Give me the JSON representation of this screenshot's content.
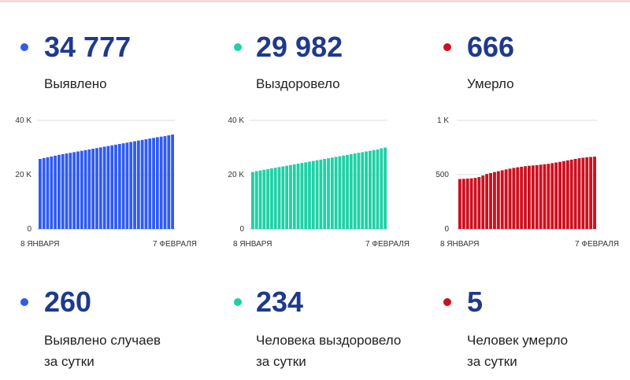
{
  "colors": {
    "blue": "#2f5bf0",
    "green": "#1fd0a6",
    "red": "#cc1020",
    "number": "#1f3a8a"
  },
  "top": {
    "infected": {
      "value": "34 777",
      "label": "Выявлено"
    },
    "recovered": {
      "value": "29 982",
      "label": "Выздоровело"
    },
    "died": {
      "value": "666",
      "label": "Умерло"
    }
  },
  "daily": {
    "infected": {
      "value": "260",
      "line1": "Выявлено случаев",
      "line2": "за сутки"
    },
    "recovered": {
      "value": "234",
      "line1": "Человека выздоровело",
      "line2": "за сутки"
    },
    "died": {
      "value": "5",
      "line1": "Человек умерло",
      "line2": "за сутки"
    }
  },
  "chart_data": [
    {
      "type": "bar",
      "color": "#2f5bf0",
      "xlabel_start": "8 ЯНВАРЯ",
      "xlabel_end": "7 ФЕВРАЛЯ",
      "yticks": [
        {
          "v": 0,
          "t": "0"
        },
        {
          "v": 20000,
          "t": "20 K"
        },
        {
          "v": 40000,
          "t": "40 K"
        }
      ],
      "ylim": [
        0,
        40000
      ],
      "grid": true,
      "values": [
        25800,
        26100,
        26400,
        26700,
        27000,
        27300,
        27550,
        27800,
        28050,
        28300,
        28550,
        28800,
        29050,
        29300,
        29550,
        29800,
        30050,
        30300,
        30550,
        30800,
        31050,
        31300,
        31550,
        31800,
        32050,
        32300,
        32550,
        32800,
        33050,
        33300,
        33550,
        33800,
        34000,
        34200,
        34500,
        34777
      ]
    },
    {
      "type": "bar",
      "color": "#1fd0a6",
      "xlabel_start": "8 ЯНВАРЯ",
      "xlabel_end": "7 ФЕВРАЛЯ",
      "yticks": [
        {
          "v": 0,
          "t": "0"
        },
        {
          "v": 20000,
          "t": "20 K"
        },
        {
          "v": 40000,
          "t": "40 K"
        }
      ],
      "ylim": [
        0,
        40000
      ],
      "grid": true,
      "values": [
        21000,
        21300,
        21550,
        21800,
        22050,
        22300,
        22550,
        22800,
        23050,
        23300,
        23550,
        23800,
        24050,
        24300,
        24550,
        24800,
        25050,
        25300,
        25550,
        25800,
        26050,
        26300,
        26550,
        26800,
        27050,
        27300,
        27550,
        27800,
        28050,
        28300,
        28550,
        28800,
        29050,
        29300,
        29700,
        29982
      ]
    },
    {
      "type": "bar",
      "color": "#cc1020",
      "xlabel_start": "8 ЯНВАРЯ",
      "xlabel_end": "7 ФЕВРАЛЯ",
      "yticks": [
        {
          "v": 0,
          "t": "0"
        },
        {
          "v": 500,
          "t": "500"
        },
        {
          "v": 1000,
          "t": "1 K"
        }
      ],
      "ylim": [
        0,
        1000
      ],
      "grid": true,
      "values": [
        460,
        462,
        464,
        466,
        470,
        478,
        492,
        506,
        515,
        524,
        532,
        540,
        548,
        555,
        562,
        568,
        573,
        578,
        582,
        585,
        588,
        592,
        596,
        600,
        606,
        612,
        618,
        625,
        632,
        638,
        645,
        651,
        656,
        660,
        663,
        666
      ]
    }
  ]
}
